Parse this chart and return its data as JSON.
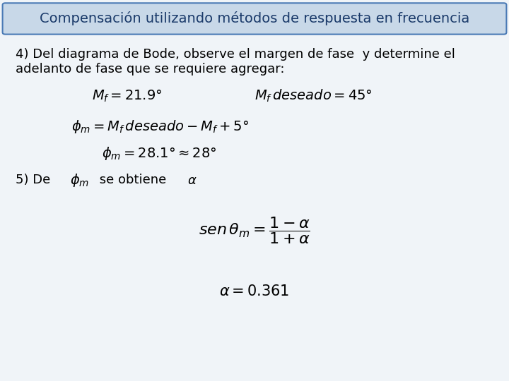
{
  "title": "Compensación utilizando métodos de respuesta en frecuencia",
  "title_bg": "#c8d8e8",
  "title_border": "#4a7ab5",
  "bg_color": "#f0f4f8",
  "title_fontsize": 14,
  "body_fontsize": 13,
  "text_color": "#000000",
  "title_text_color": "#1a3a6a",
  "para4_line1": "4) Del diagrama de Bode, observe el margen de fase  y determine el",
  "para4_line2": "adelanto de fase que se requiere agregar:",
  "para5_pre": "5) De ",
  "para5_post": " se obtiene"
}
